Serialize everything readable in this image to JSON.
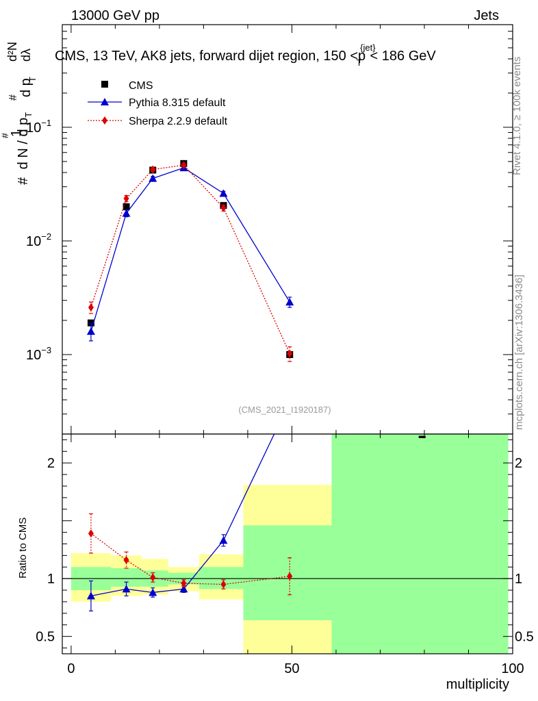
{
  "header": {
    "left": "13000 GeV pp",
    "right": "Jets"
  },
  "side_labels": {
    "rivet": "Rivet 4.1.0, ≥ 100k events",
    "mcplots": "mcplots.cern.ch [arXiv:1306.3436]"
  },
  "watermark": "(CMS_2021_I1920187)",
  "chart_data": [
    {
      "type": "line",
      "panel": "main",
      "title": "CMS, 13 TeV, AK8 jets, forward dijet region, 150 <p_T^{jet}< 186 GeV",
      "title_parts": {
        "pre": "CMS, 13 TeV, AK8 jets, forward dijet region, 150 <p",
        "sub": "T",
        "sup": "{jet}",
        "post": "< 186 GeV"
      },
      "ylabel_parts": {
        "one": "1",
        "hash": "#",
        "dN": "d N / d p",
        "pT": "T",
        "num": "d²N",
        "den": "d p",
        "dl": "dλ"
      },
      "yscale": "log",
      "ylim": [
        0.0002,
        0.8
      ],
      "xlim": [
        -2,
        100
      ],
      "y_tick_labels": [
        {
          "value": 0.1,
          "base": "10",
          "exp": "−1"
        },
        {
          "value": 0.01,
          "base": "10",
          "exp": "−2"
        },
        {
          "value": 0.001,
          "base": "10",
          "exp": "−3"
        }
      ],
      "legend": [
        "CMS",
        "Pythia 8.315 default",
        "Sherpa 2.2.9 default"
      ],
      "legend_position": "top-left",
      "series": [
        {
          "name": "CMS",
          "color": "#000000",
          "marker": "square",
          "x": [
            4.5,
            12.5,
            18.5,
            25.5,
            34.5,
            49.5,
            79.5
          ],
          "y": [
            0.0019,
            0.02,
            0.042,
            0.048,
            0.0205,
            0.001,
            0.00018
          ]
        },
        {
          "name": "Pythia 8.315 default",
          "color": "#0000cc",
          "marker": "triangle",
          "line": "solid",
          "x": [
            4.5,
            12.5,
            18.5,
            25.5,
            34.5,
            49.5
          ],
          "y": [
            0.0016,
            0.0175,
            0.0355,
            0.044,
            0.0262,
            0.0029
          ],
          "err": [
            0.00028,
            0.0012,
            0.0015,
            0.0015,
            0.0012,
            0.0003
          ]
        },
        {
          "name": "Sherpa 2.2.9 default",
          "color": "#dd0000",
          "marker": "diamond",
          "line": "dotted",
          "x": [
            4.5,
            12.5,
            18.5,
            25.5,
            34.5,
            49.5
          ],
          "y": [
            0.0026,
            0.0236,
            0.0425,
            0.0465,
            0.0195,
            0.00102
          ],
          "err": [
            0.0003,
            0.0015,
            0.0015,
            0.0015,
            0.0012,
            0.00015
          ]
        }
      ]
    },
    {
      "type": "line",
      "panel": "ratio",
      "ylabel": "Ratio to CMS",
      "xlabel": "multiplicity",
      "ylim": [
        0.35,
        2.25
      ],
      "xlim": [
        -2,
        100
      ],
      "x_tick_labels": [
        0,
        50,
        100
      ],
      "y_tick_labels": [
        0.5,
        1,
        2
      ],
      "reference_line": 1,
      "uncertainty_bands": [
        {
          "x0": 0,
          "x1": 9,
          "yellow": [
            0.8,
            1.22
          ],
          "green": [
            0.9,
            1.1
          ]
        },
        {
          "x0": 9,
          "x1": 16,
          "yellow": [
            0.85,
            1.2
          ],
          "green": [
            0.93,
            1.09
          ]
        },
        {
          "x0": 16,
          "x1": 22,
          "yellow": [
            0.86,
            1.17
          ],
          "green": [
            0.93,
            1.07
          ]
        },
        {
          "x0": 22,
          "x1": 29,
          "yellow": [
            0.89,
            1.1
          ],
          "green": [
            0.95,
            1.05
          ]
        },
        {
          "x0": 29,
          "x1": 39,
          "yellow": [
            0.82,
            1.21
          ],
          "green": [
            0.91,
            1.1
          ]
        },
        {
          "x0": 39,
          "x1": 59,
          "yellow": [
            0.35,
            1.81
          ],
          "green": [
            0.64,
            1.46
          ]
        },
        {
          "x0": 59,
          "x1": 99,
          "yellow": [
            0.35,
            2.25
          ],
          "green": [
            0.35,
            2.25
          ]
        }
      ],
      "series": [
        {
          "name": "Pythia 8.315 default",
          "color": "#0000cc",
          "marker": "triangle",
          "line": "solid",
          "x": [
            4.5,
            12.5,
            18.5,
            25.5,
            34.5,
            46.0
          ],
          "y": [
            0.85,
            0.91,
            0.88,
            0.91,
            1.33,
            2.25
          ],
          "err": [
            0.13,
            0.06,
            0.04,
            0.03,
            0.05,
            0
          ],
          "show_marker": [
            true,
            true,
            true,
            true,
            true,
            false
          ]
        },
        {
          "name": "Sherpa 2.2.9 default",
          "color": "#dd0000",
          "marker": "diamond",
          "line": "dotted",
          "x": [
            4.5,
            12.5,
            18.5,
            25.5,
            34.5,
            49.5
          ],
          "y": [
            1.39,
            1.16,
            1.01,
            0.96,
            0.95,
            1.02
          ],
          "err": [
            0.17,
            0.07,
            0.04,
            0.03,
            0.04,
            0.16
          ]
        }
      ]
    }
  ]
}
